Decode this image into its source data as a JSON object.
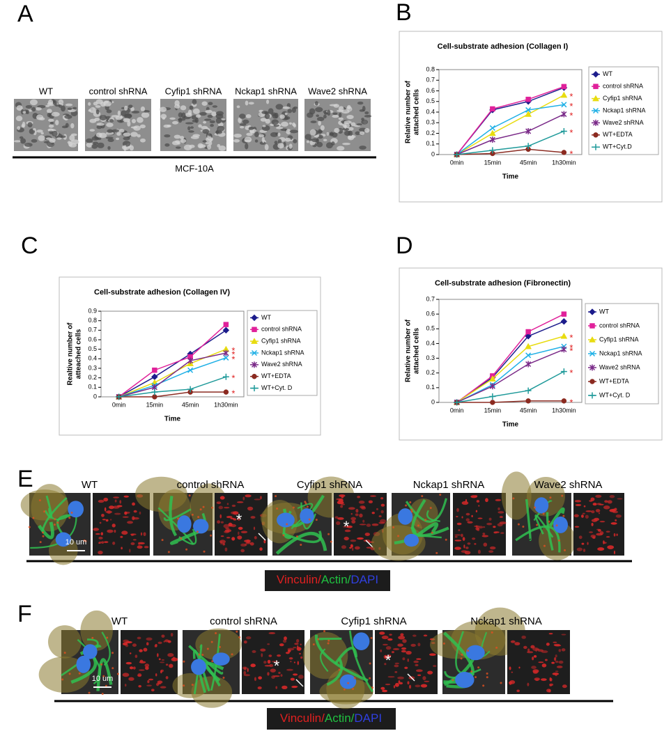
{
  "panels": {
    "A": {
      "label": "A",
      "titles": [
        "WT",
        "control shRNA",
        "Cyfip1 shRNA",
        "Nckap1 shRNA",
        "Wave2 shRNA"
      ],
      "caption": "MCF-10A"
    },
    "E": {
      "label": "E",
      "images": [
        {
          "title": "WT"
        },
        {
          "title": "control shRNA",
          "asterisk": "*"
        },
        {
          "title": "Cyfip1 shRNA",
          "asterisk": "*"
        },
        {
          "title": "Nckap1 shRNA"
        },
        {
          "title": "Wave2 shRNA"
        }
      ],
      "scale_bar": "10 um",
      "stain": [
        "Vinculin/",
        "Actin/",
        "DAPI"
      ]
    },
    "F": {
      "label": "F",
      "images": [
        {
          "title": "WT"
        },
        {
          "title": "control shRNA",
          "asterisk": "*"
        },
        {
          "title": "Cyfip1 shRNA",
          "asterisk": "*"
        },
        {
          "title": "Nckap1 shRNA"
        }
      ],
      "scale_bar": "10 um",
      "stain": [
        "Vinculin/",
        "Actin/",
        "DAPI"
      ]
    }
  },
  "chart_data": [
    {
      "type": "line",
      "panel_label": "B",
      "title": "Cell-substrate adhesion (Collagen I)",
      "xlabel": "Time",
      "ylabel": [
        "Relative number of",
        "attached cells"
      ],
      "categories": [
        "0min",
        "15min",
        "45min",
        "1h30min"
      ],
      "ylim": [
        0,
        0.8
      ],
      "yticks": [
        0,
        0.1,
        0.2,
        0.3,
        0.4,
        0.5,
        0.6,
        0.7,
        0.8
      ],
      "series": [
        {
          "name": "WT",
          "color": "#1c1c8c",
          "marker": "diamond",
          "values": [
            0,
            0.42,
            0.5,
            0.63
          ]
        },
        {
          "name": "control shRNA",
          "color": "#e0219a",
          "marker": "square",
          "values": [
            0,
            0.43,
            0.52,
            0.64
          ]
        },
        {
          "name": "Cyfip1 shRNA",
          "color": "#e8dc10",
          "marker": "triangle",
          "values": [
            0,
            0.2,
            0.38,
            0.56
          ],
          "significance": "*"
        },
        {
          "name": "Nckap1 shRNA",
          "color": "#1fb0e6",
          "marker": "x",
          "values": [
            0,
            0.25,
            0.42,
            0.47
          ],
          "significance": "*"
        },
        {
          "name": "Wave2 shRNA",
          "color": "#7a2a88",
          "marker": "asterisk",
          "values": [
            0,
            0.14,
            0.22,
            0.38
          ],
          "significance": "*"
        },
        {
          "name": "WT+EDTA",
          "color": "#8b2a20",
          "marker": "circle",
          "values": [
            0,
            0.01,
            0.05,
            0.02
          ],
          "significance": "*"
        },
        {
          "name": "WT+Cyt.D",
          "color": "#1f9a9a",
          "marker": "plus",
          "values": [
            0,
            0.04,
            0.08,
            0.22
          ],
          "significance": "*"
        }
      ]
    },
    {
      "type": "line",
      "panel_label": "C",
      "title": "Cell-substrate adhesion (Collagen IV)",
      "xlabel": "Time",
      "ylabel": [
        "Realtive number of",
        "atteached cells"
      ],
      "categories": [
        "0min",
        "15min",
        "45min",
        "1h30min"
      ],
      "ylim": [
        0,
        0.9
      ],
      "yticks": [
        0,
        0.1,
        0.2,
        0.3,
        0.4,
        0.5,
        0.6,
        0.7,
        0.8,
        0.9
      ],
      "series": [
        {
          "name": "WT",
          "color": "#1c1c8c",
          "marker": "diamond",
          "values": [
            0,
            0.21,
            0.45,
            0.7
          ]
        },
        {
          "name": "control shRNA",
          "color": "#e0219a",
          "marker": "square",
          "values": [
            0,
            0.28,
            0.42,
            0.76
          ]
        },
        {
          "name": "Cyfip1 shRNA",
          "color": "#e8dc10",
          "marker": "triangle",
          "values": [
            0,
            0.15,
            0.35,
            0.5
          ],
          "significance": "*"
        },
        {
          "name": "Nckap1 shRNA",
          "color": "#1fb0e6",
          "marker": "x",
          "values": [
            0,
            0.12,
            0.28,
            0.41
          ],
          "significance": "*"
        },
        {
          "name": "Wave2 shRNA",
          "color": "#7a2a88",
          "marker": "asterisk",
          "values": [
            0,
            0.1,
            0.38,
            0.46
          ],
          "significance": "*"
        },
        {
          "name": "WT+EDTA",
          "color": "#8b2a20",
          "marker": "circle",
          "values": [
            0,
            0,
            0.05,
            0.05
          ],
          "significance": "*"
        },
        {
          "name": "WT+Cyt. D",
          "color": "#1f9a9a",
          "marker": "plus",
          "values": [
            0,
            0.05,
            0.08,
            0.21
          ],
          "significance": "*"
        }
      ]
    },
    {
      "type": "line",
      "panel_label": "D",
      "title": "Cell-substrate adhesion (Fibronectin)",
      "xlabel": "Time",
      "ylabel": [
        "Relative number of",
        "attached cells"
      ],
      "categories": [
        "0min",
        "15min",
        "45min",
        "1h30min"
      ],
      "ylim": [
        0,
        0.7
      ],
      "yticks": [
        0,
        0.1,
        0.2,
        0.3,
        0.4,
        0.5,
        0.6,
        0.7
      ],
      "series": [
        {
          "name": "WT",
          "color": "#1c1c8c",
          "marker": "diamond",
          "values": [
            0,
            0.17,
            0.45,
            0.55
          ]
        },
        {
          "name": "control shRNA",
          "color": "#e0219a",
          "marker": "square",
          "values": [
            0,
            0.18,
            0.48,
            0.6
          ]
        },
        {
          "name": "Cyfip1 shRNA",
          "color": "#e8dc10",
          "marker": "triangle",
          "values": [
            0,
            0.16,
            0.38,
            0.45
          ],
          "significance": "*"
        },
        {
          "name": "Nckap1 shRNA",
          "color": "#1fb0e6",
          "marker": "x",
          "values": [
            0,
            0.12,
            0.32,
            0.38
          ],
          "significance": "*"
        },
        {
          "name": "Wave2 shRNA",
          "color": "#7a2a88",
          "marker": "asterisk",
          "values": [
            0,
            0.11,
            0.26,
            0.36
          ],
          "significance": "*"
        },
        {
          "name": "WT+EDTA",
          "color": "#8b2a20",
          "marker": "circle",
          "values": [
            0,
            0,
            0.01,
            0.01
          ],
          "significance": "*"
        },
        {
          "name": "WT+Cyt. D",
          "color": "#1f9a9a",
          "marker": "plus",
          "values": [
            0,
            0.04,
            0.08,
            0.21
          ],
          "significance": "*"
        }
      ]
    }
  ]
}
